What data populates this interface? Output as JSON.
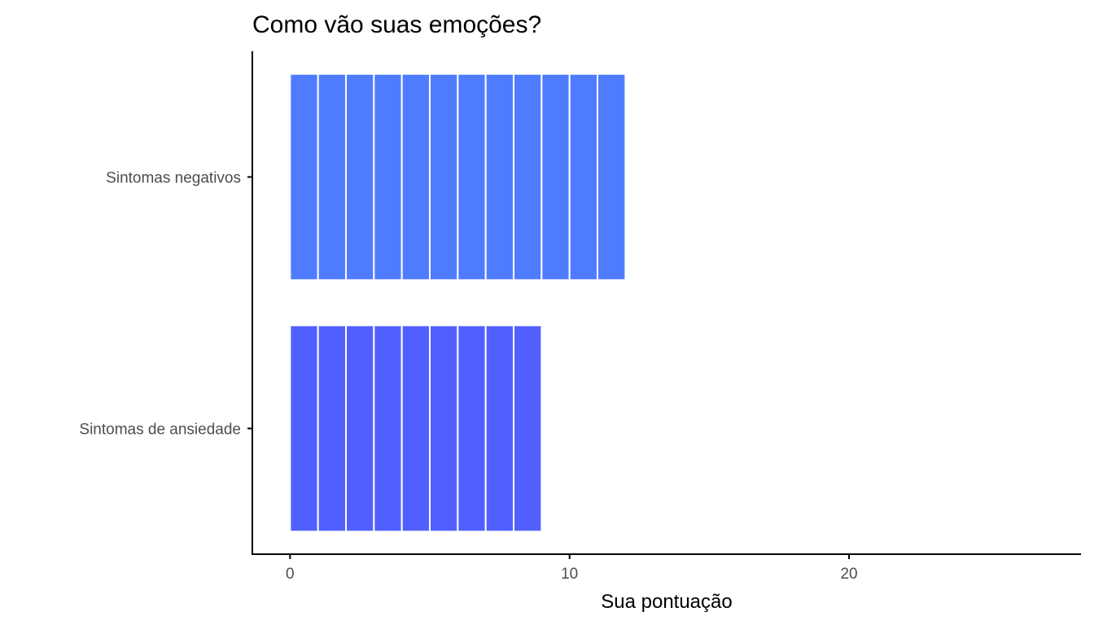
{
  "chart_data": {
    "type": "bar",
    "orientation": "horizontal",
    "title": "Como vão suas emoções?",
    "xlabel": "Sua pontuação",
    "ylabel": "",
    "categories": [
      "Sintomas negativos",
      "Sintomas de ansiedade"
    ],
    "values": [
      12,
      9
    ],
    "colors": [
      "#4f7cff",
      "#5060ff"
    ],
    "xlim": [
      -1.35,
      28.3
    ],
    "xticks": [
      0,
      10,
      20
    ],
    "grid": false,
    "legend": "none",
    "segmented": true,
    "segment_size": 1
  }
}
